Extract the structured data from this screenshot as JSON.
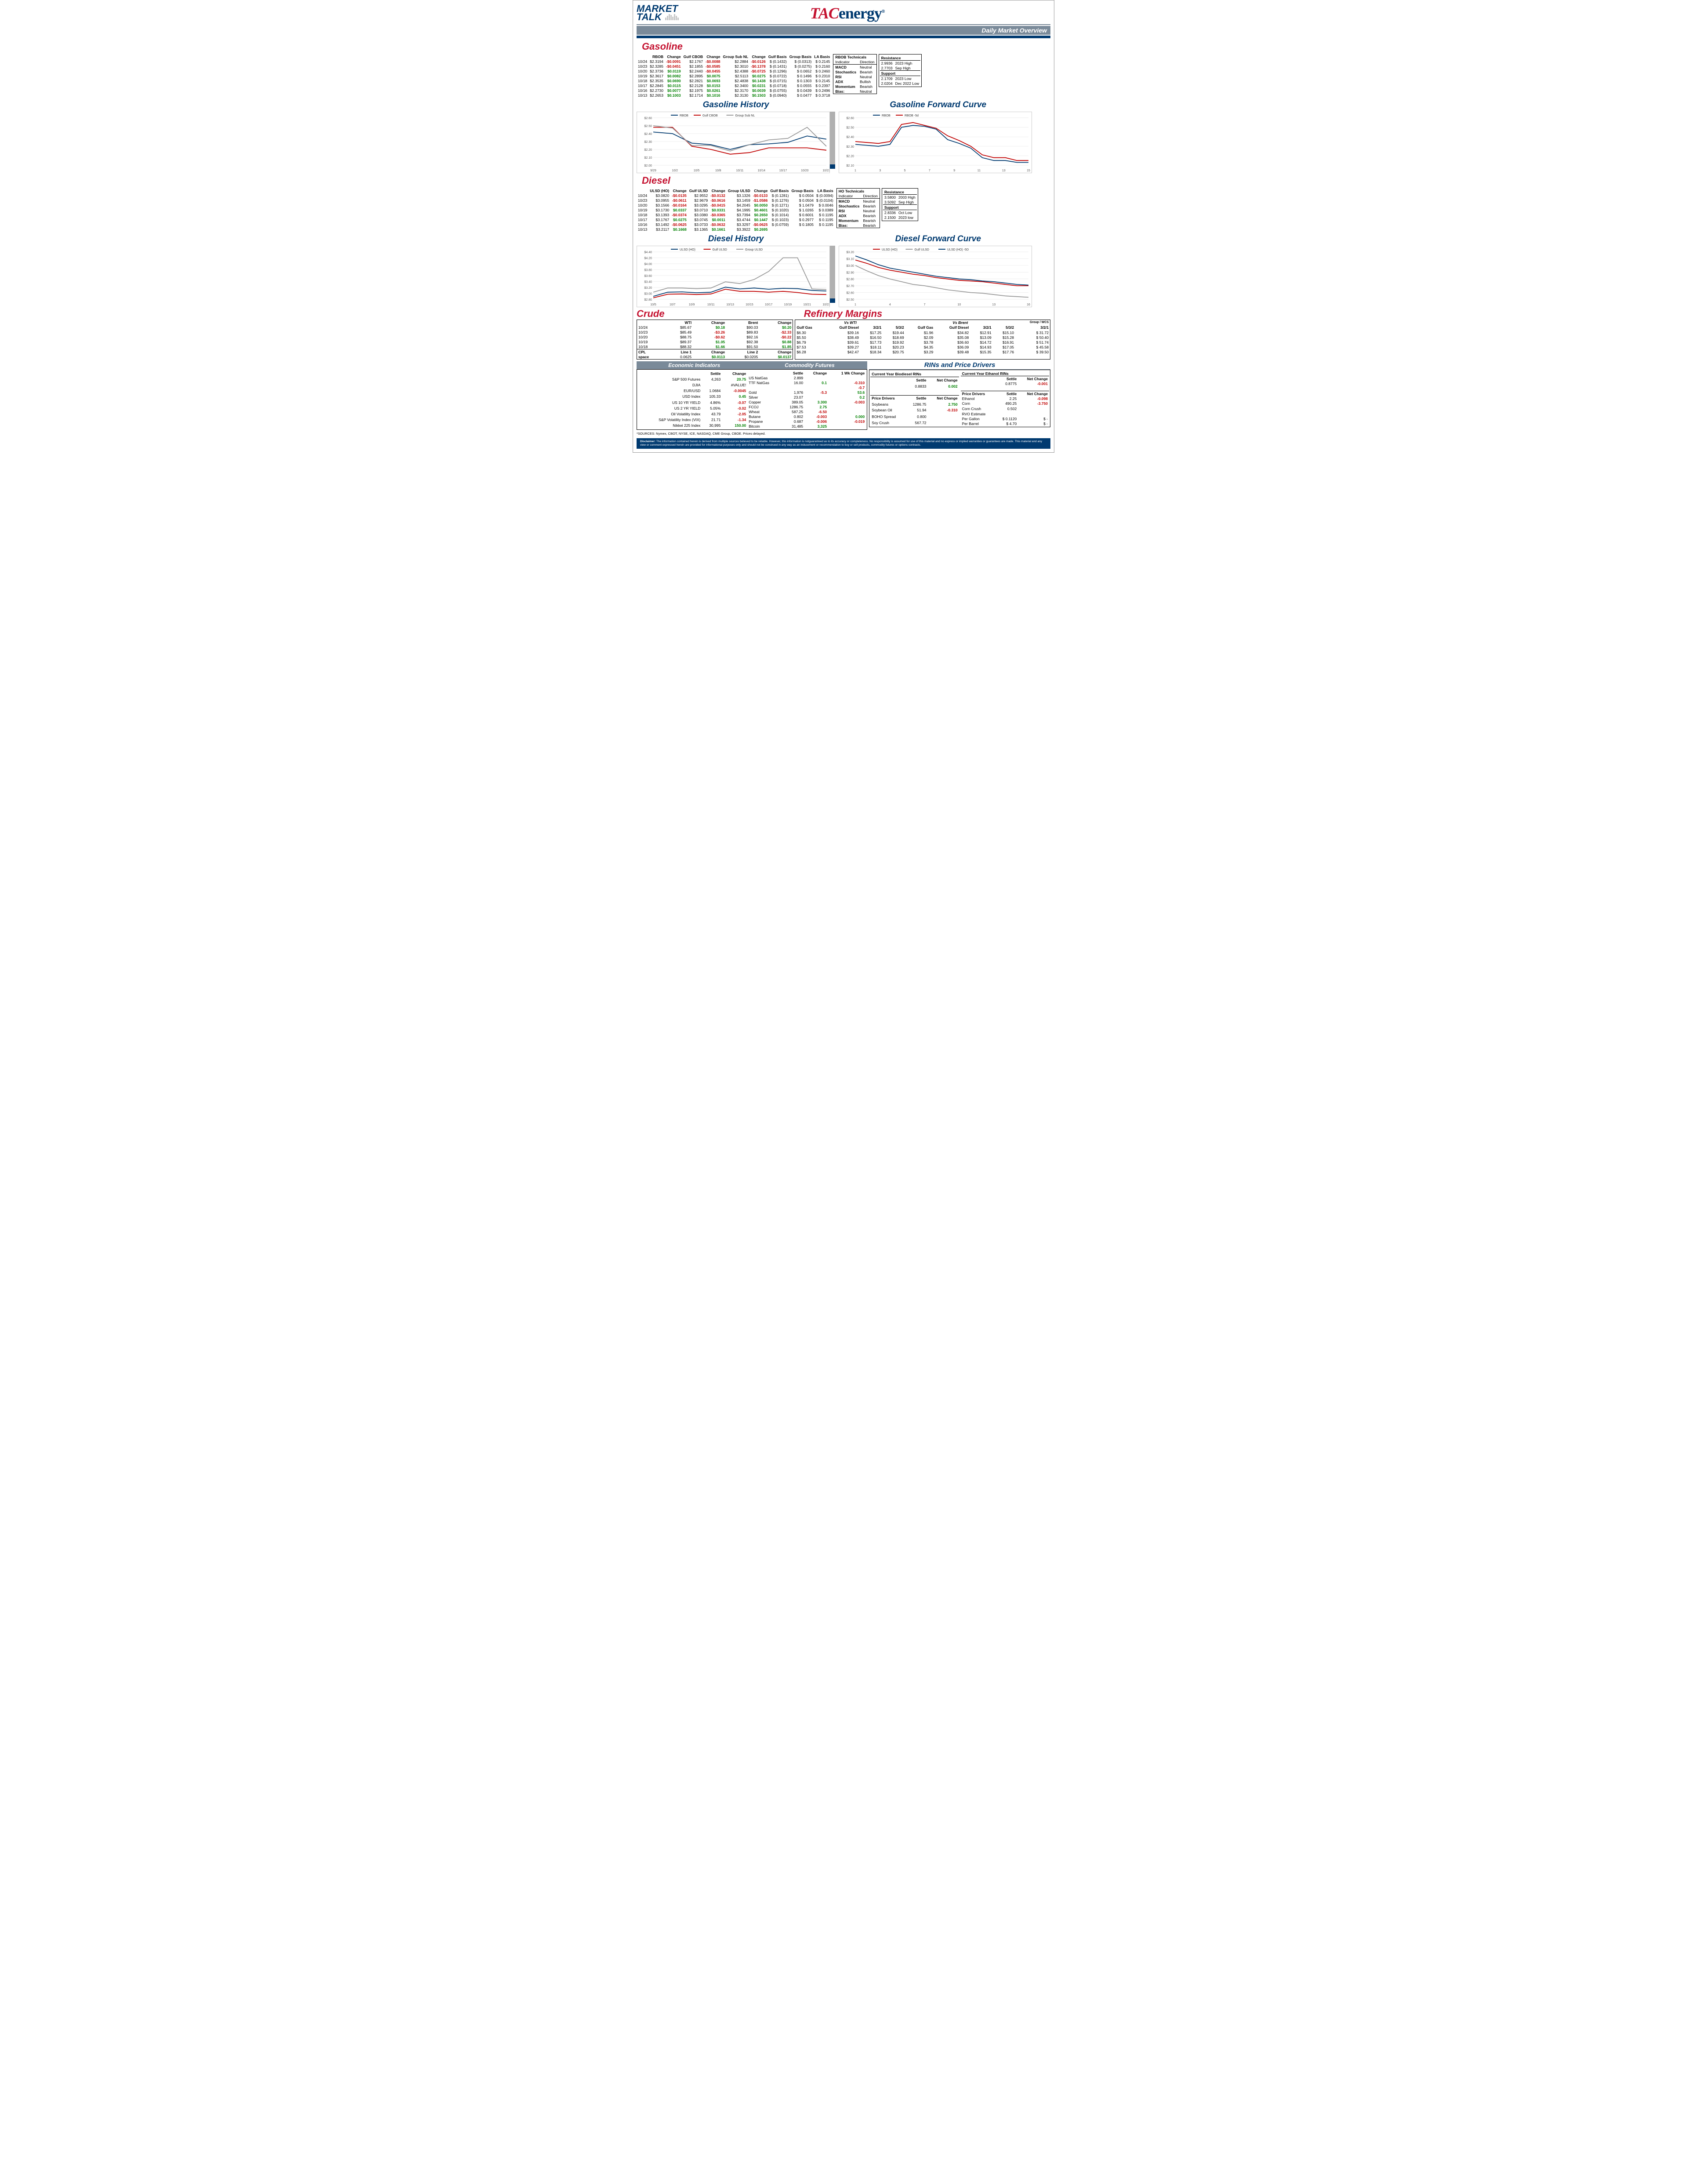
{
  "header": {
    "market_talk_line1": "MARKET",
    "market_talk_line2": "TALK",
    "logo_tac": "TAC",
    "logo_energy": "energy",
    "overview": "Daily Market Overview"
  },
  "gasoline": {
    "title": "Gasoline",
    "columns": [
      "",
      "RBOB",
      "Change",
      "Gulf CBOB",
      "Change",
      "Group Sub NL",
      "Change",
      "Gulf Basis",
      "Group Basis",
      "LA Basis"
    ],
    "rows": [
      [
        "10/24",
        "$2.3194",
        "-$0.0091",
        "$2.1767",
        "-$0.0088",
        "$2.2884",
        "-$0.0126",
        "$ (0.1432)",
        "$ (0.0313)",
        "$ 0.2145"
      ],
      [
        "10/23",
        "$2.3285",
        "-$0.0451",
        "$2.1855",
        "-$0.0585",
        "$2.3010",
        "-$0.1378",
        "$ (0.1431)",
        "$ (0.0275)",
        "$ 0.2160"
      ],
      [
        "10/20",
        "$2.3736",
        "$0.0119",
        "$2.2440",
        "-$0.0455",
        "$2.4388",
        "-$0.0725",
        "$ (0.1296)",
        "$ 0.0652",
        "$ 0.2460"
      ],
      [
        "10/19",
        "$2.3617",
        "$0.0082",
        "$2.2895",
        "$0.0075",
        "$2.5113",
        "$0.0275",
        "$ (0.0722)",
        "$ 0.1496",
        "$ 0.2310"
      ],
      [
        "10/18",
        "$2.3535",
        "$0.0690",
        "$2.2821",
        "$0.0693",
        "$2.4838",
        "$0.1438",
        "$ (0.0715)",
        "$ 0.1303",
        "$ 0.2145"
      ],
      [
        "10/17",
        "$2.2845",
        "$0.0115",
        "$2.2128",
        "$0.0153",
        "$2.3400",
        "$0.0231",
        "$ (0.0718)",
        "$ 0.0555",
        "$ 0.2397"
      ],
      [
        "10/16",
        "$2.2730",
        "$0.0077",
        "$2.1975",
        "$0.0261",
        "$2.3170",
        "$0.0039",
        "$ (0.0755)",
        "$ 0.0439",
        "$ 0.2496"
      ],
      [
        "10/13",
        "$2.2653",
        "$0.1003",
        "$2.1714",
        "$0.1016",
        "$2.3130",
        "$0.1503",
        "$ (0.0940)",
        "$ 0.0477",
        "$ 0.3718"
      ]
    ],
    "signs": [
      [
        0,
        0,
        -1,
        0,
        -1,
        0,
        -1,
        0,
        0,
        0
      ],
      [
        0,
        0,
        -1,
        0,
        -1,
        0,
        -1,
        0,
        0,
        0
      ],
      [
        0,
        0,
        1,
        0,
        -1,
        0,
        -1,
        0,
        0,
        0
      ],
      [
        0,
        0,
        1,
        0,
        1,
        0,
        1,
        0,
        0,
        0
      ],
      [
        0,
        0,
        1,
        0,
        1,
        0,
        1,
        0,
        0,
        0
      ],
      [
        0,
        0,
        1,
        0,
        1,
        0,
        1,
        0,
        0,
        0
      ],
      [
        0,
        0,
        1,
        0,
        1,
        0,
        1,
        0,
        0,
        0
      ],
      [
        0,
        0,
        1,
        0,
        1,
        0,
        1,
        0,
        0,
        0
      ]
    ],
    "tech": {
      "title": "RBOB Technicals",
      "headers": [
        "Indicator",
        "Direction"
      ],
      "rows": [
        [
          "MACD",
          "Neutral"
        ],
        [
          "Stochastics",
          "Bearish"
        ],
        [
          "RSI",
          "Neutral"
        ],
        [
          "ADX",
          "Bullish"
        ],
        [
          "Momentum",
          "Bearish"
        ],
        [
          "Bias:",
          "Neutral"
        ]
      ]
    },
    "resistance": {
      "res_title": "Resistance",
      "res_rows": [
        [
          "2.9936",
          "2023 High"
        ],
        [
          "2.7703",
          "Sep High"
        ]
      ],
      "sup_title": "Support",
      "sup_rows": [
        [
          "2.1709",
          "2023 Low"
        ],
        [
          "2.0204",
          "Dec 2022 Low"
        ]
      ]
    },
    "history": {
      "title": "Gasoline History",
      "legend": [
        "RBOB",
        "Gulf CBOB",
        "Group Sub NL"
      ],
      "legend_colors": [
        "#003a70",
        "#c00000",
        "#999999"
      ],
      "x": [
        "9/29",
        "10/2",
        "10/5",
        "10/8",
        "10/11",
        "10/14",
        "10/17",
        "10/20",
        "10/23"
      ],
      "ylim": [
        2.0,
        2.6
      ],
      "ytick": 0.1,
      "series": [
        [
          2.42,
          2.4,
          2.28,
          2.26,
          2.2,
          2.26,
          2.27,
          2.29,
          2.37,
          2.33
        ],
        [
          2.48,
          2.48,
          2.24,
          2.2,
          2.14,
          2.16,
          2.22,
          2.22,
          2.22,
          2.19
        ],
        [
          2.5,
          2.47,
          2.25,
          2.25,
          2.18,
          2.26,
          2.32,
          2.34,
          2.48,
          2.24
        ]
      ]
    },
    "forward": {
      "title": "Gasoline Forward Curve",
      "legend": [
        "RBOB",
        "RBOB -5d"
      ],
      "legend_colors": [
        "#003a70",
        "#c00000"
      ],
      "x": [
        "1",
        "3",
        "5",
        "7",
        "9",
        "11",
        "13",
        "15"
      ],
      "ylim": [
        2.1,
        2.6
      ],
      "ytick": 0.1,
      "series": [
        [
          2.32,
          2.31,
          2.3,
          2.32,
          2.5,
          2.52,
          2.51,
          2.48,
          2.37,
          2.33,
          2.28,
          2.18,
          2.15,
          2.15,
          2.13,
          2.13
        ],
        [
          2.35,
          2.34,
          2.33,
          2.35,
          2.53,
          2.55,
          2.52,
          2.49,
          2.41,
          2.36,
          2.3,
          2.21,
          2.18,
          2.18,
          2.15,
          2.15
        ]
      ]
    }
  },
  "diesel": {
    "title": "Diesel",
    "columns": [
      "",
      "ULSD (HO)",
      "Change",
      "Gulf ULSD",
      "Change",
      "Group ULSD",
      "Change",
      "Gulf Basis",
      "Group Basis",
      "LA Basis"
    ],
    "rows": [
      [
        "10/24",
        "$3.0820",
        "-$0.0135",
        "$2.9552",
        "-$0.0132",
        "$3.1326",
        "-$0.0133",
        "$ (0.1281)",
        "$ 0.0504",
        "$ (0.0094)"
      ],
      [
        "10/23",
        "$3.0955",
        "-$0.0611",
        "$2.9679",
        "-$0.0616",
        "$3.1459",
        "-$1.0586",
        "$ (0.1276)",
        "$ 0.0504",
        "$ (0.0104)"
      ],
      [
        "10/20",
        "$3.1566",
        "-$0.0164",
        "$3.0295",
        "-$0.0415",
        "$4.2045",
        "$0.0050",
        "$ (0.1271)",
        "$ 1.0479",
        "$ 0.0046"
      ],
      [
        "10/19",
        "$3.1730",
        "$0.0337",
        "$3.0710",
        "$0.0331",
        "$4.1995",
        "$0.4601",
        "$ (0.1020)",
        "$ 1.0265",
        "$ 0.0389"
      ],
      [
        "10/18",
        "$3.1393",
        "-$0.0374",
        "$3.0380",
        "-$0.0365",
        "$3.7394",
        "$0.2650",
        "$ (0.1014)",
        "$ 0.6001",
        "$ 0.1195"
      ],
      [
        "10/17",
        "$3.1767",
        "$0.0275",
        "$3.0745",
        "$0.0011",
        "$3.4744",
        "$0.1447",
        "$ (0.1023)",
        "$ 0.2977",
        "$ 0.1195"
      ],
      [
        "10/16",
        "$3.1492",
        "-$0.0625",
        "$3.0733",
        "-$0.0632",
        "$3.3297",
        "-$0.0625",
        "$ (0.0759)",
        "$ 0.1805",
        "$ 0.1195"
      ],
      [
        "10/13",
        "$3.2117",
        "$0.1668",
        "$3.1365",
        "$0.1661",
        "$3.3922",
        "$0.2695",
        "",
        "",
        ""
      ]
    ],
    "signs": [
      [
        0,
        0,
        -1,
        0,
        -1,
        0,
        -1,
        0,
        0,
        0
      ],
      [
        0,
        0,
        -1,
        0,
        -1,
        0,
        -1,
        0,
        0,
        0
      ],
      [
        0,
        0,
        -1,
        0,
        -1,
        0,
        1,
        0,
        0,
        0
      ],
      [
        0,
        0,
        1,
        0,
        1,
        0,
        1,
        0,
        0,
        0
      ],
      [
        0,
        0,
        -1,
        0,
        -1,
        0,
        1,
        0,
        0,
        0
      ],
      [
        0,
        0,
        1,
        0,
        1,
        0,
        1,
        0,
        0,
        0
      ],
      [
        0,
        0,
        -1,
        0,
        -1,
        0,
        -1,
        0,
        0,
        0
      ],
      [
        0,
        0,
        1,
        0,
        1,
        0,
        1,
        0,
        0,
        0
      ]
    ],
    "tech": {
      "title": "HO Technicals",
      "headers": [
        "Indicator",
        "Direction"
      ],
      "rows": [
        [
          "MACD",
          "Neutral"
        ],
        [
          "Stochastics",
          "Bearish"
        ],
        [
          "RSI",
          "Neutral"
        ],
        [
          "ADX",
          "Bearish"
        ],
        [
          "Momentum",
          "Bearish"
        ],
        [
          "Bias:",
          "Bearish"
        ]
      ]
    },
    "resistance": {
      "res_title": "Resistance",
      "res_rows": [
        [
          "3.5800",
          "2003 High"
        ],
        [
          "3.5092",
          "Sep High"
        ]
      ],
      "sup_title": "Support",
      "sup_rows": [
        [
          "2.8336",
          "Oct Low"
        ],
        [
          "2.1500",
          "2023 low"
        ]
      ]
    },
    "history": {
      "title": "Diesel History",
      "legend": [
        "ULSD (HO)",
        "Gulf ULSD",
        "Group ULSD"
      ],
      "legend_colors": [
        "#003a70",
        "#c00000",
        "#999999"
      ],
      "x": [
        "10/5",
        "10/7",
        "10/9",
        "10/11",
        "10/13",
        "10/15",
        "10/17",
        "10/19",
        "10/21",
        "10/23"
      ],
      "ylim": [
        2.8,
        4.4
      ],
      "ytick": 0.2,
      "series": [
        [
          2.9,
          3.04,
          3.05,
          3.02,
          3.04,
          3.21,
          3.15,
          3.18,
          3.14,
          3.17,
          3.16,
          3.1,
          3.08
        ],
        [
          2.85,
          2.97,
          2.98,
          2.96,
          2.98,
          3.14,
          3.07,
          3.07,
          3.04,
          3.07,
          3.03,
          2.97,
          2.96
        ],
        [
          3.04,
          3.18,
          3.18,
          3.16,
          3.18,
          3.39,
          3.33,
          3.47,
          3.74,
          4.2,
          4.2,
          3.15,
          3.13
        ]
      ]
    },
    "forward": {
      "title": "Diesel Forward Curve",
      "legend": [
        "ULSD (HO)",
        "Gulf ULSD",
        "ULSD (HO) -5D"
      ],
      "legend_colors": [
        "#c00000",
        "#999999",
        "#003a70"
      ],
      "x": [
        "1",
        "4",
        "7",
        "10",
        "13",
        "16"
      ],
      "ylim": [
        2.5,
        3.2
      ],
      "ytick": 0.1,
      "series": [
        [
          3.08,
          3.03,
          2.97,
          2.93,
          2.9,
          2.87,
          2.85,
          2.82,
          2.8,
          2.78,
          2.77,
          2.76,
          2.74,
          2.72,
          2.7,
          2.7
        ],
        [
          3.0,
          2.92,
          2.85,
          2.8,
          2.76,
          2.72,
          2.7,
          2.67,
          2.64,
          2.62,
          2.6,
          2.59,
          2.57,
          2.55,
          2.54,
          2.53
        ],
        [
          3.14,
          3.08,
          3.01,
          2.96,
          2.93,
          2.9,
          2.87,
          2.84,
          2.82,
          2.8,
          2.79,
          2.77,
          2.76,
          2.74,
          2.72,
          2.71
        ]
      ]
    }
  },
  "crude": {
    "title": "Crude",
    "columns": [
      "",
      "WTI",
      "Change",
      "Brent",
      "Change"
    ],
    "rows": [
      [
        "10/24",
        "$85.67",
        "$0.18",
        "$90.03",
        "$0.20"
      ],
      [
        "10/23",
        "$85.49",
        "-$3.26",
        "$89.83",
        "-$2.33"
      ],
      [
        "10/20",
        "$88.75",
        "-$0.62",
        "$92.16",
        "-$0.22"
      ],
      [
        "10/19",
        "$89.37",
        "$1.05",
        "$92.38",
        "$0.88"
      ],
      [
        "10/18",
        "$88.32",
        "$1.66",
        "$91.50",
        "$1.85"
      ]
    ],
    "signs": [
      [
        0,
        0,
        1,
        0,
        1
      ],
      [
        0,
        0,
        -1,
        0,
        -1
      ],
      [
        0,
        0,
        -1,
        0,
        -1
      ],
      [
        0,
        0,
        1,
        0,
        1
      ],
      [
        0,
        0,
        1,
        0,
        1
      ]
    ],
    "cpl": {
      "label": "CPL",
      "sub": "space",
      "line1": "Line 1",
      "val1": "0.0625",
      "c1": "Change",
      "cv1": "$0.0113",
      "line2": "Line 2",
      "val2": "$0.0205",
      "c2": "Change",
      "cv2": "$0.0137"
    }
  },
  "margins": {
    "title": "Refinery Margins",
    "header1": [
      "Vs WTI",
      "",
      "",
      "",
      "Vs Brent",
      "",
      "",
      "",
      "Group / WCS"
    ],
    "cols": [
      "Gulf Gas",
      "Gulf Diesel",
      "3/2/1",
      "5/3/2",
      "Gulf Gas",
      "Gulf Diesel",
      "3/2/1",
      "5/3/2",
      "3/2/1"
    ],
    "rows": [
      [
        "",
        "",
        "",
        "",
        "",
        "",
        "",
        "",
        ""
      ],
      [
        "$6.30",
        "$39.16",
        "$17.25",
        "$19.44",
        "$1.96",
        "$34.82",
        "$12.91",
        "$15.10",
        "$ 31.72"
      ],
      [
        "$5.50",
        "$38.49",
        "$16.50",
        "$18.69",
        "$2.09",
        "$35.08",
        "$13.09",
        "$15.28",
        "$ 50.40"
      ],
      [
        "$6.79",
        "$39.61",
        "$17.73",
        "$19.92",
        "$3.78",
        "$36.60",
        "$14.72",
        "$16.91",
        "$ 51.74"
      ],
      [
        "$7.53",
        "$39.27",
        "$18.11",
        "$20.23",
        "$4.35",
        "$36.09",
        "$14.93",
        "$17.05",
        "$ 45.58"
      ],
      [
        "$6.28",
        "$42.47",
        "$18.34",
        "$20.75",
        "$3.29",
        "$39.48",
        "$15.35",
        "$17.76",
        "$ 39.50"
      ]
    ]
  },
  "econ": {
    "title1": "Economic Indicators",
    "title2": "Commodity Futures",
    "left_cols": [
      "",
      "Settle",
      "Change"
    ],
    "left_rows": [
      [
        "S&P 500 Futures",
        "4,263",
        "20.75"
      ],
      [
        "DJIA",
        "",
        "#VALUE!"
      ],
      [
        "EUR/USD",
        "1.0684",
        "-0.0045"
      ],
      [
        "USD Index",
        "105.33",
        "0.45"
      ],
      [
        "US 10 YR YIELD",
        "4.86%",
        "-0.07"
      ],
      [
        "US 2 YR YIELD",
        "5.05%",
        "-0.02"
      ],
      [
        "Oil Volatility Index",
        "43.79",
        "-2.05"
      ],
      [
        "S&P Volatility Index (VIX)",
        "21.71",
        "-1.34"
      ],
      [
        "Nikkei 225 Index",
        "30,995",
        "150.00"
      ]
    ],
    "left_signs": [
      1,
      0,
      -1,
      1,
      -1,
      -1,
      -1,
      -1,
      1
    ],
    "right_cols": [
      "",
      "Settle",
      "Change",
      "1 Wk Change"
    ],
    "right_rows": [
      [
        "US NatGas",
        "2.899",
        "",
        ""
      ],
      [
        "TTF NatGas",
        "16.00",
        "0.1",
        "-0.310"
      ],
      [
        "",
        "",
        "",
        "-0.7"
      ],
      [
        "Gold",
        "1,976",
        "-5.3",
        "53.6"
      ],
      [
        "Silver",
        "23.07",
        "",
        "0.2"
      ],
      [
        "Copper",
        "389.05",
        "3.300",
        "-0.003"
      ],
      [
        "FCOJ",
        "1286.75",
        "2.75",
        ""
      ],
      [
        "Wheat",
        "587.25",
        "-6.50",
        ""
      ],
      [
        "Butane",
        "0.802",
        "-0.003",
        "0.000"
      ],
      [
        "Propane",
        "0.687",
        "-0.006",
        "-0.019"
      ],
      [
        "Bitcoin",
        "31,485",
        "3,325",
        ""
      ]
    ],
    "right_signs_c": [
      0,
      1,
      0,
      -1,
      0,
      1,
      1,
      -1,
      -1,
      -1,
      1
    ],
    "right_signs_w": [
      0,
      -1,
      -1,
      1,
      1,
      -1,
      0,
      0,
      1,
      -1,
      0
    ]
  },
  "rins": {
    "title": "RINs and Price Drivers",
    "bio_title": "Current Year Biodiesel RINs",
    "eth_title": "Current Year Ethanol RINs",
    "bio": {
      "settle": "0.8833",
      "change": "0.002",
      "sign": 1
    },
    "eth": {
      "settle": "0.8775",
      "change": "-0.001",
      "sign": -1
    },
    "pd1_title": "Price Drivers",
    "pd1_cols": [
      "",
      "Settle",
      "Net Change"
    ],
    "pd1_rows": [
      [
        "Soybeans",
        "1286.75",
        "2.750"
      ],
      [
        "Soybean Oil",
        "51.94",
        "-0.310"
      ],
      [
        "",
        ""
      ],
      [
        "BOHO Spread",
        "0.800",
        ""
      ],
      [
        "",
        ""
      ],
      [
        "Soy Crush",
        "567.72",
        ""
      ]
    ],
    "pd1_signs": [
      1,
      -1,
      0,
      0,
      0,
      0
    ],
    "pd2_title": "Price Drivers",
    "pd2_cols": [
      "",
      "Settle",
      "Net Change"
    ],
    "pd2_rows": [
      [
        "Ethanol",
        "2.25",
        "-0.098"
      ],
      [
        "Corn",
        "490.25",
        "-3.750"
      ],
      [
        "",
        ""
      ],
      [
        "Corn Crush",
        "0.502",
        ""
      ],
      [
        "",
        ""
      ],
      [
        "RVO Estimate",
        "",
        ""
      ],
      [
        "Per Gallon",
        "$ 0.1120",
        "$ -"
      ],
      [
        "Per Barrel",
        "$ 4.70",
        "$ -"
      ]
    ],
    "pd2_signs": [
      -1,
      -1,
      0,
      0,
      0,
      0,
      0,
      0
    ]
  },
  "sources": "*SOURCES: Nymex, CBOT, NYSE, ICE, NASDAQ, CME Group, CBOE.   Prices delayed.",
  "disclaimer": "Disclaimer: The information contained herein is derived from multiple sources believed to be reliable.  However, this information is notguaranteed as to its accuracy or completeness. No responsibility is assumed for use of this material and no express or implied warranties or guarantees are made. This material and any view or comment expressed herein are provided for informational purposes only and should not be construed in any way as an inducement or recommendation to buy or sell products, commodity futures or options contracts."
}
